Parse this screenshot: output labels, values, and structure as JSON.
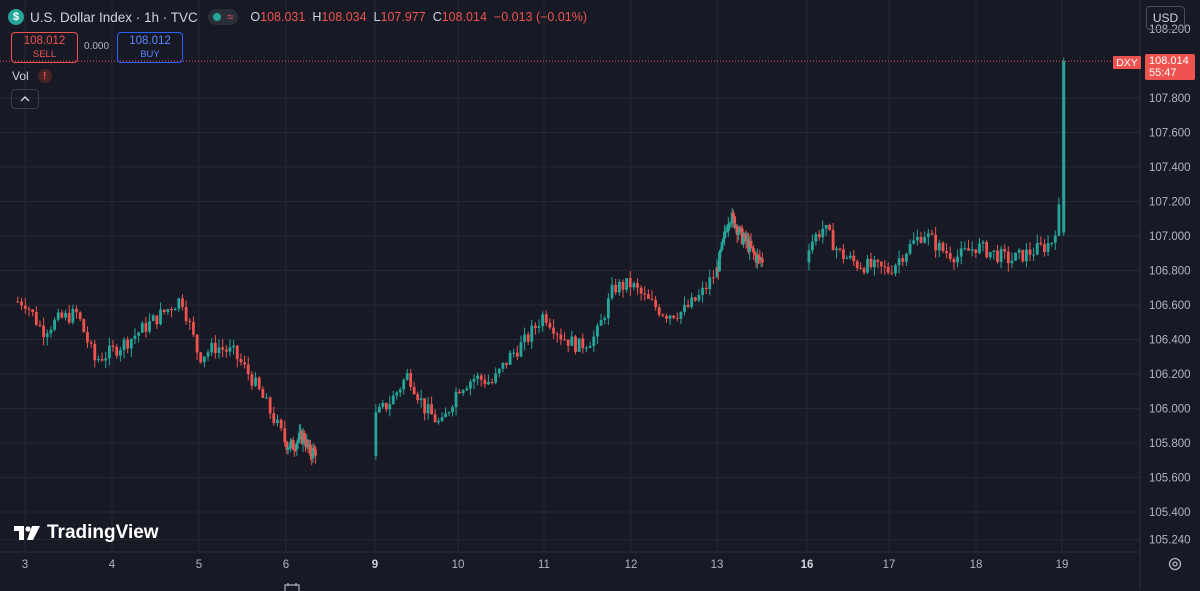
{
  "header": {
    "symbol_badge": "$",
    "title": "U.S. Dollar Index · 1h · TVC",
    "status_wave": "≈",
    "ohlc": {
      "o_label": "O",
      "o_value": "108.031",
      "h_label": "H",
      "h_value": "108.034",
      "l_label": "L",
      "l_value": "107.977",
      "c_label": "C",
      "c_value": "108.014",
      "change": "−0.013 (−0.01%)"
    }
  },
  "trade": {
    "sell_price": "108.012",
    "sell_label": "SELL",
    "spread": "0.000",
    "buy_price": "108.012",
    "buy_label": "BUY"
  },
  "volume": {
    "label": "Vol",
    "warning": "!"
  },
  "currency": "USD",
  "last_price": {
    "ticker": "DXY",
    "price": "108.014",
    "countdown": "55:47"
  },
  "logo_text": "TradingView",
  "colors": {
    "background": "#171a25",
    "grid": "#242833",
    "up": "#26a69a",
    "down": "#ef5350",
    "axis_text": "#b2b5be",
    "buy": "#2962ff"
  },
  "chart_data": {
    "type": "candlestick",
    "title": "U.S. Dollar Index · 1h · TVC",
    "y_ticks": [
      "108.200",
      "107.800",
      "107.600",
      "107.400",
      "107.200",
      "107.000",
      "106.800",
      "106.600",
      "106.400",
      "106.200",
      "106.000",
      "105.800",
      "105.600",
      "105.400",
      "105.240"
    ],
    "x_ticks": [
      {
        "label": "3",
        "bold": false
      },
      {
        "label": "4",
        "bold": false
      },
      {
        "label": "5",
        "bold": false
      },
      {
        "label": "6",
        "bold": false
      },
      {
        "label": "9",
        "bold": true
      },
      {
        "label": "10",
        "bold": false
      },
      {
        "label": "11",
        "bold": false
      },
      {
        "label": "12",
        "bold": false
      },
      {
        "label": "13",
        "bold": false
      },
      {
        "label": "16",
        "bold": true
      },
      {
        "label": "17",
        "bold": false
      },
      {
        "label": "18",
        "bold": false
      },
      {
        "label": "19",
        "bold": false
      }
    ],
    "ylim": [
      105.22,
      108.21
    ],
    "last_price": 108.014,
    "close_path": [
      [
        3,
        106.62
      ],
      [
        3.2,
        106.45
      ],
      [
        3.4,
        106.52
      ],
      [
        3.6,
        106.55
      ],
      [
        3.8,
        106.28
      ],
      [
        4.0,
        106.33
      ],
      [
        4.2,
        106.4
      ],
      [
        4.4,
        106.48
      ],
      [
        4.6,
        106.56
      ],
      [
        4.8,
        106.64
      ],
      [
        5.0,
        106.3
      ],
      [
        5.2,
        106.36
      ],
      [
        5.4,
        106.32
      ],
      [
        5.6,
        106.18
      ],
      [
        5.8,
        106.0
      ],
      [
        6.0,
        105.8
      ],
      [
        6.2,
        105.78
      ],
      [
        6.4,
        105.82
      ],
      [
        6.6,
        105.84
      ],
      [
        6.8,
        105.74
      ],
      [
        9.0,
        105.95
      ],
      [
        9.2,
        106.05
      ],
      [
        9.4,
        106.2
      ],
      [
        9.6,
        106.0
      ],
      [
        9.8,
        105.9
      ],
      [
        10.0,
        106.12
      ],
      [
        10.2,
        106.18
      ],
      [
        10.4,
        106.15
      ],
      [
        10.6,
        106.3
      ],
      [
        10.8,
        106.4
      ],
      [
        11.0,
        106.55
      ],
      [
        11.2,
        106.42
      ],
      [
        11.4,
        106.36
      ],
      [
        11.6,
        106.42
      ],
      [
        11.8,
        106.7
      ],
      [
        12.0,
        106.72
      ],
      [
        12.2,
        106.62
      ],
      [
        12.4,
        106.55
      ],
      [
        12.6,
        106.56
      ],
      [
        12.8,
        106.65
      ],
      [
        13.0,
        106.8
      ],
      [
        13.2,
        106.95
      ],
      [
        13.4,
        107.12
      ],
      [
        13.6,
        107.08
      ],
      [
        13.8,
        107.0
      ],
      [
        14.0,
        106.96
      ],
      [
        14.2,
        106.9
      ],
      [
        14.4,
        106.86
      ],
      [
        16.0,
        106.94
      ],
      [
        16.2,
        107.05
      ],
      [
        16.4,
        106.9
      ],
      [
        16.6,
        106.84
      ],
      [
        16.8,
        106.82
      ],
      [
        17.0,
        106.8
      ],
      [
        17.2,
        106.92
      ],
      [
        17.4,
        107.02
      ],
      [
        17.6,
        106.92
      ],
      [
        17.8,
        106.88
      ],
      [
        18.0,
        106.94
      ],
      [
        18.2,
        106.9
      ],
      [
        18.4,
        106.86
      ],
      [
        18.6,
        106.9
      ],
      [
        18.8,
        106.94
      ],
      [
        18.9,
        106.98
      ],
      [
        18.96,
        107.16
      ],
      [
        19.0,
        107.02
      ],
      [
        19.02,
        108.014
      ]
    ]
  }
}
